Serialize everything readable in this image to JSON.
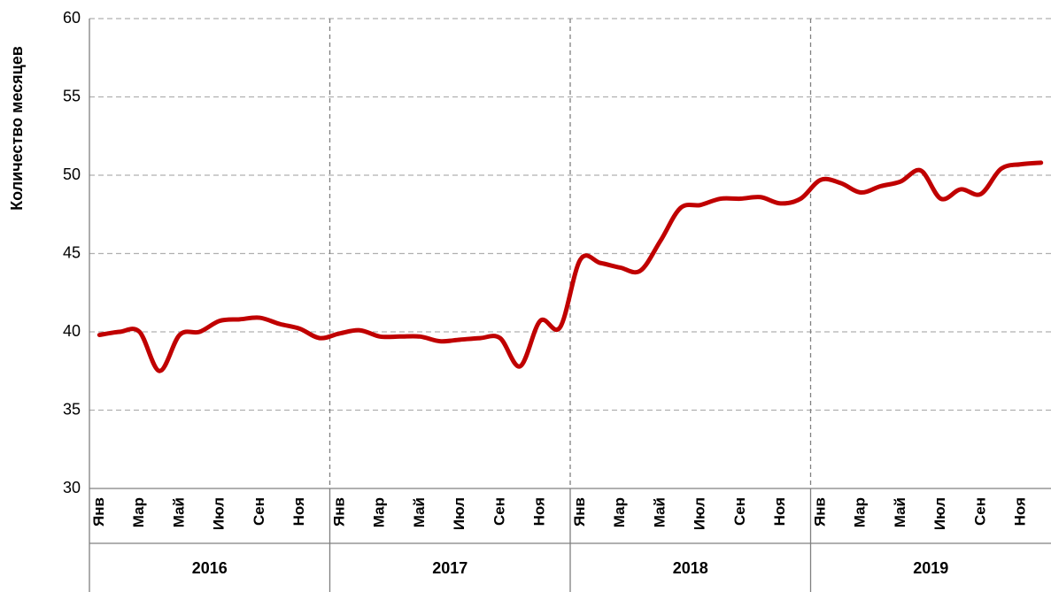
{
  "chart_data": {
    "type": "line",
    "y_axis_label": "Количество месяцев",
    "categories": [
      "Янв",
      null,
      "Мар",
      null,
      "Май",
      null,
      "Июл",
      null,
      "Сен",
      null,
      "Ноя",
      null,
      "Янв",
      null,
      "Мар",
      null,
      "Май",
      null,
      "Июл",
      null,
      "Сен",
      null,
      "Ноя",
      null,
      "Янв",
      null,
      "Мар",
      null,
      "Май",
      null,
      "Июл",
      null,
      "Сен",
      null,
      "Ноя",
      null,
      "Янв",
      null,
      "Мар",
      null,
      "Май",
      null,
      "Июл",
      null,
      "Сен",
      null,
      "Ноя",
      null
    ],
    "groups": [
      "2016",
      "2017",
      "2018",
      "2019"
    ],
    "series": [
      {
        "color": "#c00000",
        "values": [
          39.8,
          40.0,
          40.0,
          37.5,
          39.8,
          40.0,
          40.7,
          40.8,
          40.9,
          40.5,
          40.2,
          39.6,
          39.9,
          40.1,
          39.7,
          39.7,
          39.7,
          39.4,
          39.5,
          39.6,
          39.6,
          37.8,
          40.7,
          40.3,
          44.6,
          44.4,
          44.1,
          43.9,
          45.8,
          47.9,
          48.1,
          48.5,
          48.5,
          48.6,
          48.2,
          48.5,
          49.7,
          49.5,
          48.9,
          49.3,
          49.6,
          50.3,
          48.5,
          49.1,
          48.8,
          50.4,
          50.7,
          50.8
        ]
      }
    ],
    "ylim": [
      30,
      60
    ],
    "yticks": [
      30,
      35,
      40,
      45,
      50,
      55,
      60
    ],
    "grid": true
  }
}
